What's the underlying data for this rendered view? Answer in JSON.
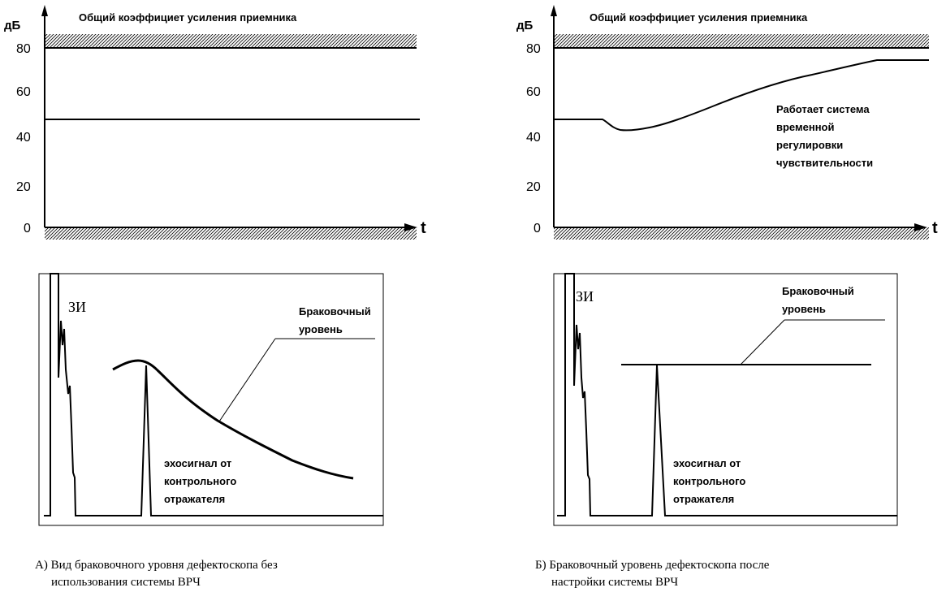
{
  "left_gain_chart": {
    "title": "Общий коэффициет усиления приемника",
    "y_unit": "дБ",
    "x_label": "t",
    "y_ticks": [
      "80",
      "60",
      "40",
      "20",
      "0"
    ],
    "description": "constant gain ≈ 47 dB"
  },
  "right_gain_chart": {
    "title": "Общий коэффициет усиления приемника",
    "y_unit": "дБ",
    "x_label": "t",
    "y_ticks": [
      "80",
      "60",
      "40",
      "20",
      "0"
    ],
    "note": [
      "Работает система",
      "временной",
      "регулировки",
      "чувствительности"
    ]
  },
  "left_scope": {
    "zi_label": "ЗИ",
    "rejection_label": [
      "Браковочный",
      "уровень"
    ],
    "echo_label": [
      "эхосигнал от",
      "контрольного",
      "отражателя"
    ],
    "caption": [
      "А) Вид браковочного уровня дефектоскопа без",
      "использования системы ВРЧ"
    ]
  },
  "right_scope": {
    "zi_label": "ЗИ",
    "rejection_label": [
      "Браковочный",
      "уровень"
    ],
    "echo_label": [
      "эхосигнал от",
      "контрольного",
      "отражателя"
    ],
    "caption": [
      "Б) Браковочный уровень дефектоскопа после",
      "настройки системы ВРЧ"
    ]
  },
  "chart_data": [
    {
      "type": "line",
      "title": "Общий коэффициет усиления приемника",
      "ylabel": "дБ",
      "xlabel": "t",
      "ylim": [
        0,
        80
      ],
      "yticks": [
        0,
        20,
        40,
        60,
        80
      ],
      "series": [
        {
          "values": [
            47,
            47
          ]
        }
      ]
    },
    {
      "type": "line",
      "title": "Общий коэффициет усиления приемника",
      "ylabel": "дБ",
      "xlabel": "t",
      "ylim": [
        0,
        80
      ],
      "yticks": [
        0,
        20,
        40,
        60,
        80
      ],
      "series": [
        {
          "values": [
            47,
            47,
            43,
            43,
            45,
            50,
            57,
            64,
            70,
            74,
            74
          ]
        }
      ]
    }
  ]
}
